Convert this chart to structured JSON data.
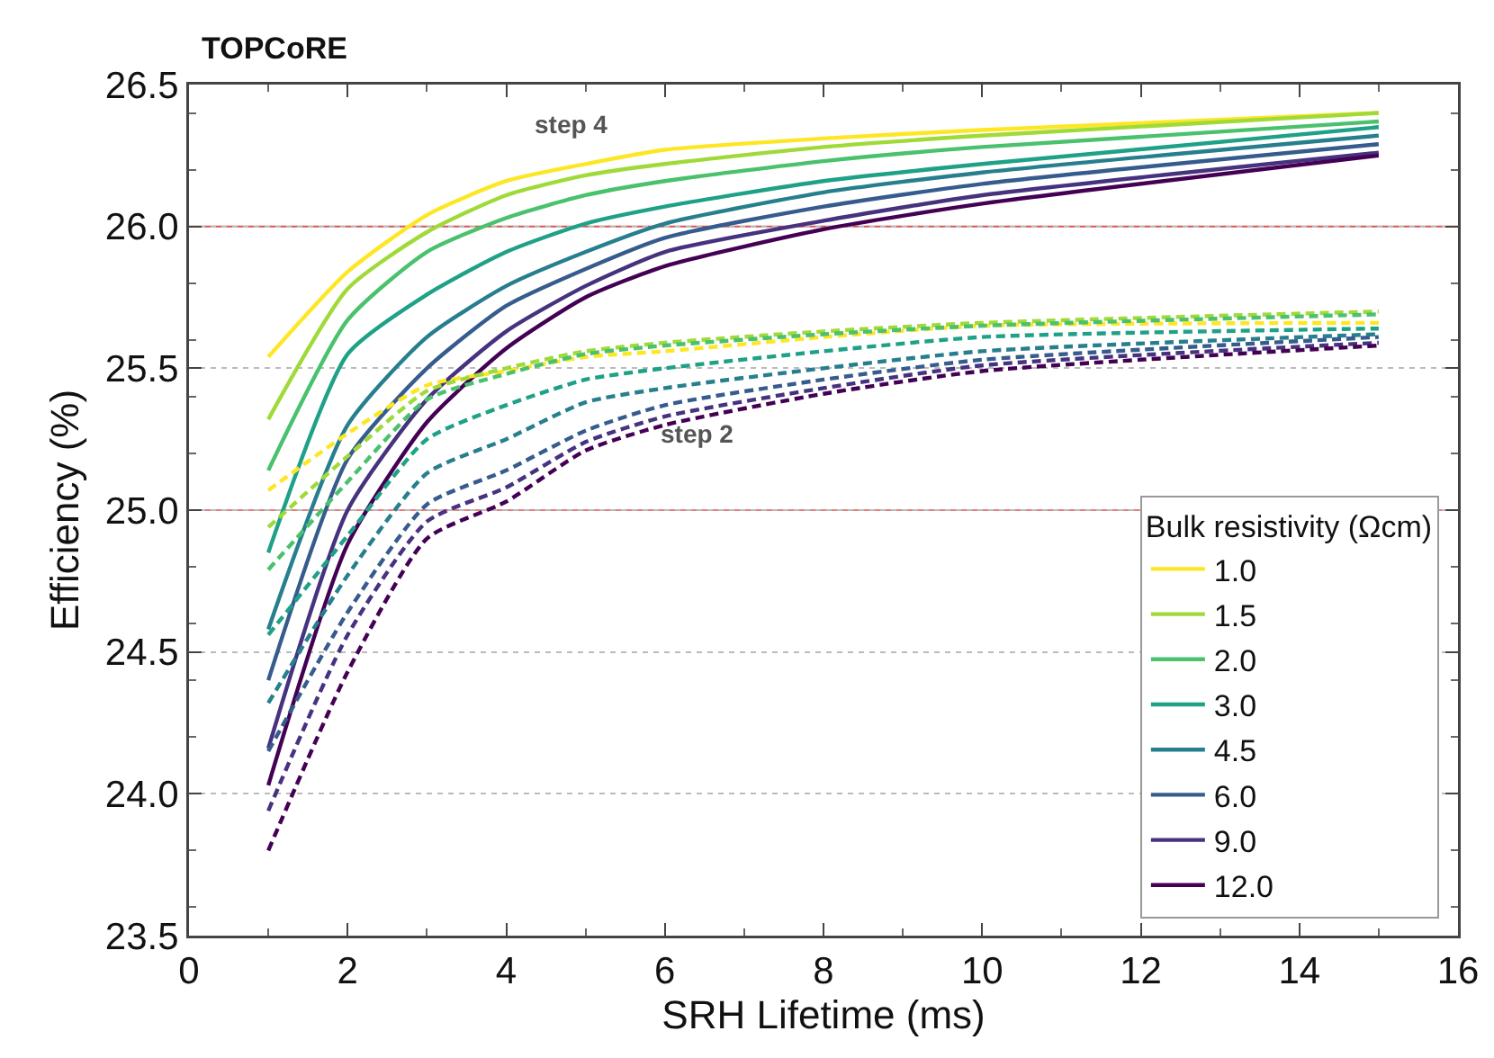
{
  "chart_data": {
    "type": "line",
    "title": "TOPCoRE",
    "xlabel": "SRH Lifetime (ms)",
    "ylabel": "Efficiency (%)",
    "legend_title": "Bulk resistivity (Ωcm)",
    "x": [
      1,
      2,
      3,
      4,
      5,
      6,
      8,
      10,
      15
    ],
    "series": [
      {
        "name": "1.0",
        "color": "#fde725",
        "line_style": "solid",
        "values": [
          25.54,
          25.84,
          26.04,
          26.16,
          26.22,
          26.27,
          26.31,
          26.34,
          26.4
        ]
      },
      {
        "name": "1.5",
        "color": "#a0da39",
        "line_style": "solid",
        "values": [
          25.32,
          25.78,
          25.98,
          26.11,
          26.18,
          26.22,
          26.28,
          26.32,
          26.4
        ]
      },
      {
        "name": "2.0",
        "color": "#4ac16d",
        "line_style": "solid",
        "values": [
          25.14,
          25.67,
          25.91,
          26.03,
          26.11,
          26.16,
          26.23,
          26.28,
          26.37
        ]
      },
      {
        "name": "3.0",
        "color": "#1fa187",
        "line_style": "solid",
        "values": [
          24.85,
          25.55,
          25.76,
          25.91,
          26.01,
          26.07,
          26.16,
          26.22,
          26.35
        ]
      },
      {
        "name": "4.5",
        "color": "#277f8e",
        "line_style": "solid",
        "values": [
          24.58,
          25.3,
          25.61,
          25.79,
          25.91,
          26.01,
          26.12,
          26.19,
          26.32
        ]
      },
      {
        "name": "6.0",
        "color": "#365c8d",
        "line_style": "solid",
        "values": [
          24.4,
          25.18,
          25.5,
          25.72,
          25.85,
          25.96,
          26.07,
          26.15,
          26.29
        ]
      },
      {
        "name": "9.0",
        "color": "#46327e",
        "line_style": "solid",
        "values": [
          24.16,
          25.0,
          25.39,
          25.63,
          25.79,
          25.91,
          26.02,
          26.11,
          26.26
        ]
      },
      {
        "name": "12.0",
        "color": "#440154",
        "line_style": "solid",
        "values": [
          24.03,
          24.88,
          25.31,
          25.57,
          25.75,
          25.86,
          25.99,
          26.08,
          26.25
        ]
      },
      {
        "color": "#fde725",
        "line_style": "dashed",
        "values": [
          25.07,
          25.27,
          25.44,
          25.49,
          25.54,
          25.56,
          25.61,
          25.65,
          25.66
        ]
      },
      {
        "color": "#a0da39",
        "line_style": "dashed",
        "values": [
          24.94,
          25.19,
          25.42,
          25.5,
          25.56,
          25.59,
          25.63,
          25.66,
          25.7
        ]
      },
      {
        "color": "#4ac16d",
        "line_style": "dashed",
        "values": [
          24.79,
          25.1,
          25.39,
          25.48,
          25.55,
          25.58,
          25.62,
          25.65,
          25.69
        ]
      },
      {
        "color": "#1fa187",
        "line_style": "dashed",
        "values": [
          24.56,
          24.91,
          25.25,
          25.37,
          25.46,
          25.5,
          25.56,
          25.61,
          25.64
        ]
      },
      {
        "color": "#277f8e",
        "line_style": "dashed",
        "values": [
          24.32,
          24.77,
          25.13,
          25.25,
          25.38,
          25.43,
          25.5,
          25.56,
          25.62
        ]
      },
      {
        "color": "#365c8d",
        "line_style": "dashed",
        "values": [
          24.15,
          24.64,
          25.02,
          25.14,
          25.28,
          25.37,
          25.46,
          25.53,
          25.61
        ]
      },
      {
        "color": "#46327e",
        "line_style": "dashed",
        "values": [
          23.94,
          24.56,
          24.96,
          25.08,
          25.24,
          25.33,
          25.43,
          25.51,
          25.59
        ]
      },
      {
        "color": "#440154",
        "line_style": "dashed",
        "values": [
          23.8,
          24.43,
          24.9,
          25.03,
          25.21,
          25.3,
          25.41,
          25.49,
          25.58
        ]
      }
    ],
    "annotations": [
      "step 4",
      "step 2"
    ],
    "ref_lines": [
      {
        "axis": "y",
        "value": 26.0,
        "color": "#d9534f"
      },
      {
        "axis": "y",
        "value": 25.0,
        "color": "#e88080"
      }
    ],
    "xlim": [
      0,
      16
    ],
    "xticks": [
      0,
      2,
      4,
      6,
      8,
      10,
      12,
      14,
      16
    ],
    "ylim": [
      23.5,
      26.5
    ],
    "yticks": [
      23.5,
      {
        "value": 24,
        "label": "24.0"
      },
      24.5,
      {
        "value": 25,
        "label": "25.0"
      },
      25.5,
      {
        "value": 26,
        "label": "26.0"
      },
      26.5
    ],
    "grid": "y",
    "legend": "bottom right"
  }
}
